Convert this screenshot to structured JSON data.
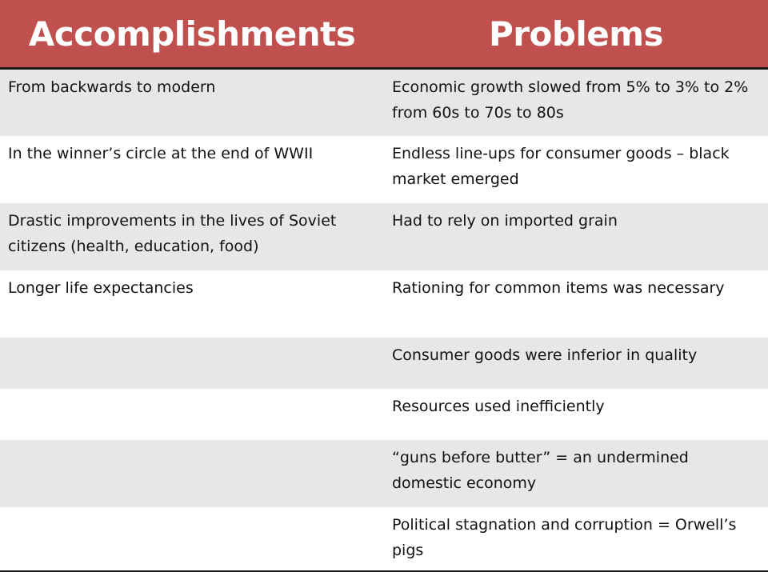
{
  "header": {
    "col1": "Accomplishments",
    "col2": "Problems"
  },
  "colors": {
    "header_bg": "#c0504d",
    "header_text": "#ffffff",
    "row_shade": "#e7e7e7",
    "row_plain": "#ffffff"
  },
  "rows": [
    {
      "accomplishment": "From backwards to modern",
      "problem": "Economic growth slowed from 5% to 3% to 2% from 60s to 70s to 80s"
    },
    {
      "accomplishment": "In the winner’s circle at the end of WWII",
      "problem": "Endless line-ups for consumer goods – black market emerged"
    },
    {
      "accomplishment": "Drastic improvements in the lives of Soviet citizens (health, education, food)",
      "problem": "Had to rely on imported grain"
    },
    {
      "accomplishment": "Longer life expectancies",
      "problem": "Rationing for common items was necessary"
    },
    {
      "accomplishment": "",
      "problem": "Consumer goods were inferior in quality"
    },
    {
      "accomplishment": "",
      "problem": "Resources used inefficiently"
    },
    {
      "accomplishment": "",
      "problem": "“guns before butter” = an undermined domestic economy"
    },
    {
      "accomplishment": "",
      "problem": "Political stagnation and corruption = Orwell’s pigs"
    }
  ]
}
